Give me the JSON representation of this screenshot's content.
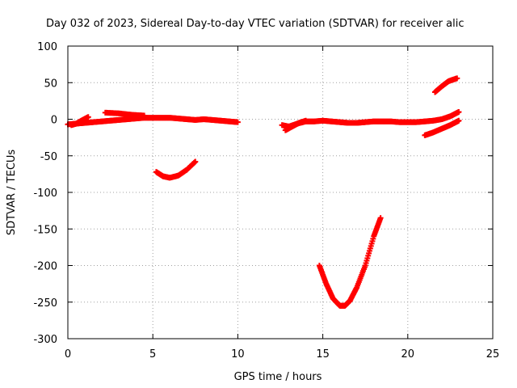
{
  "chart_data": {
    "type": "scatter",
    "title": "Day 032 of 2023, Sidereal Day-to-day VTEC variation (SDTVAR) for receiver alic",
    "xlabel": "GPS time / hours",
    "ylabel": "SDTVAR / TECUs",
    "xlim": [
      0,
      25
    ],
    "ylim": [
      -300,
      100
    ],
    "xticks": [
      0,
      5,
      10,
      15,
      20,
      25
    ],
    "yticks": [
      -300,
      -250,
      -200,
      -150,
      -100,
      -50,
      0,
      50,
      100
    ],
    "grid": true,
    "legend": "none",
    "color": "#ff0000",
    "series": [
      {
        "x": [
          0,
          0.5,
          1,
          1.5,
          2,
          2.5,
          3,
          3.5,
          4,
          4.5,
          5,
          5.5,
          6,
          6.5,
          7,
          7.5,
          8,
          8.5,
          9,
          9.5,
          10
        ],
        "y": [
          -7,
          -6,
          -5,
          -4,
          -3,
          -2,
          -1,
          0,
          1,
          2,
          2,
          2,
          2,
          1,
          0,
          -1,
          0,
          -1,
          -2,
          -3,
          -4
        ]
      },
      {
        "x": [
          0.2,
          0.5,
          0.8,
          1.2
        ],
        "y": [
          -8,
          -6,
          -2,
          3
        ]
      },
      {
        "x": [
          2.2,
          3,
          3.8,
          4.5
        ],
        "y": [
          9,
          8,
          6,
          5
        ]
      },
      {
        "x": [
          5.2,
          5.6,
          6,
          6.5,
          7,
          7.5
        ],
        "y": [
          -72,
          -78,
          -80,
          -77,
          -69,
          -58
        ]
      },
      {
        "x": [
          12.6,
          13,
          13.5,
          14,
          14.5,
          15,
          15.5,
          16,
          16.5,
          17,
          17.5,
          18,
          18.5,
          19,
          19.5,
          20,
          20.5,
          21,
          21.5,
          22,
          22.5,
          23
        ],
        "y": [
          -8,
          -10,
          -6,
          -3,
          -3,
          -2,
          -3,
          -4,
          -5,
          -5,
          -4,
          -3,
          -3,
          -3,
          -4,
          -4,
          -4,
          -3,
          -2,
          0,
          4,
          10
        ]
      },
      {
        "x": [
          12.8,
          13.2,
          13.6,
          14
        ],
        "y": [
          -15,
          -10,
          -5,
          -2
        ]
      },
      {
        "x": [
          14.8,
          15.2,
          15.6,
          16,
          16.3,
          16.6,
          17,
          17.5,
          18,
          18.4
        ],
        "y": [
          -200,
          -225,
          -245,
          -255,
          -255,
          -248,
          -230,
          -200,
          -160,
          -135
        ]
      },
      {
        "x": [
          21,
          21.5,
          22,
          22.5,
          23
        ],
        "y": [
          -22,
          -18,
          -13,
          -8,
          -2
        ]
      },
      {
        "x": [
          21.6,
          22,
          22.4,
          22.9
        ],
        "y": [
          37,
          45,
          52,
          56
        ]
      }
    ]
  }
}
